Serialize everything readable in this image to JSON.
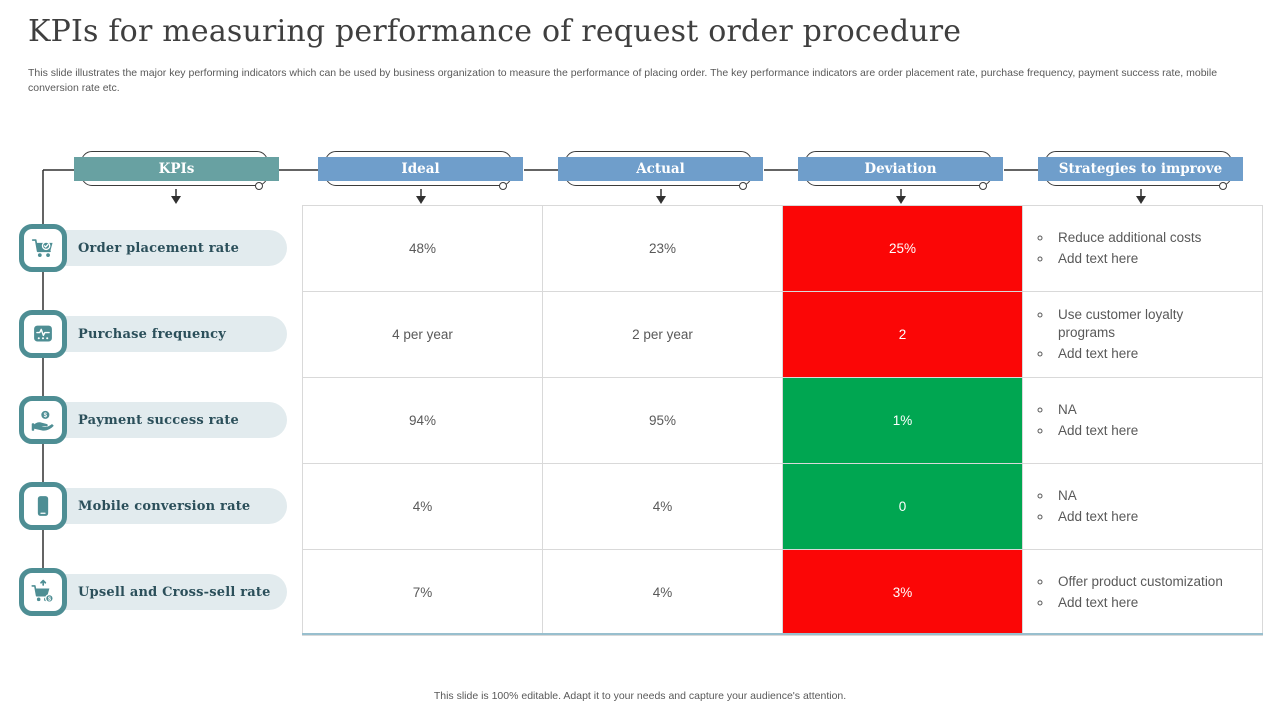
{
  "page": {
    "title": "KPIs for measuring performance of request order procedure",
    "subtitle": "This slide illustrates the major key performing indicators which can be used by business organization to measure the performance of placing order. The key performance indicators are order placement rate, purchase frequency, payment success rate, mobile conversion rate etc.",
    "footer": "This slide is 100% editable. Adapt it to your needs and capture your audience's attention."
  },
  "colors": {
    "kpi_header": "#68a1a2",
    "column_header": "#6f9ecb",
    "negative": "#fb0606",
    "positive": "#00a651",
    "accent_teal": "#4e8e94",
    "pill_bg": "#e2ebee",
    "pill_text": "#2b4f5a",
    "grid_line": "#d9d9d9",
    "table_bottom_line": "#98bfce",
    "body_text": "#595959"
  },
  "columns": [
    {
      "id": "kpis",
      "label": "KPIs"
    },
    {
      "id": "ideal",
      "label": "Ideal"
    },
    {
      "id": "actual",
      "label": "Actual"
    },
    {
      "id": "deviation",
      "label": "Deviation"
    },
    {
      "id": "strategies",
      "label": "Strategies to improve"
    }
  ],
  "rows": [
    {
      "kpi": "Order placement rate",
      "icon": "shopping-cart-check-icon",
      "ideal": "48%",
      "actual": "23%",
      "deviation": "25%",
      "deviation_status": "negative",
      "strategies": [
        "Reduce additional costs",
        "Add text here"
      ]
    },
    {
      "kpi": "Purchase frequency",
      "icon": "pulse-terminal-icon",
      "ideal": "4 per year",
      "actual": "2 per year",
      "deviation": "2",
      "deviation_status": "negative",
      "strategies": [
        "Use customer loyalty programs",
        "Add text here"
      ]
    },
    {
      "kpi": "Payment success rate",
      "icon": "hand-coin-icon",
      "ideal": "94%",
      "actual": "95%",
      "deviation": "1%",
      "deviation_status": "positive",
      "strategies": [
        "NA",
        "Add text here"
      ]
    },
    {
      "kpi": "Mobile conversion rate",
      "icon": "mobile-phone-icon",
      "ideal": "4%",
      "actual": "4%",
      "deviation": "0",
      "deviation_status": "positive",
      "strategies": [
        "NA",
        "Add text here"
      ]
    },
    {
      "kpi": "Upsell and Cross-sell rate",
      "icon": "upsell-cart-icon",
      "ideal": "7%",
      "actual": "4%",
      "deviation": "3%",
      "deviation_status": "negative",
      "strategies": [
        "Offer product customization",
        "Add text here"
      ]
    }
  ]
}
